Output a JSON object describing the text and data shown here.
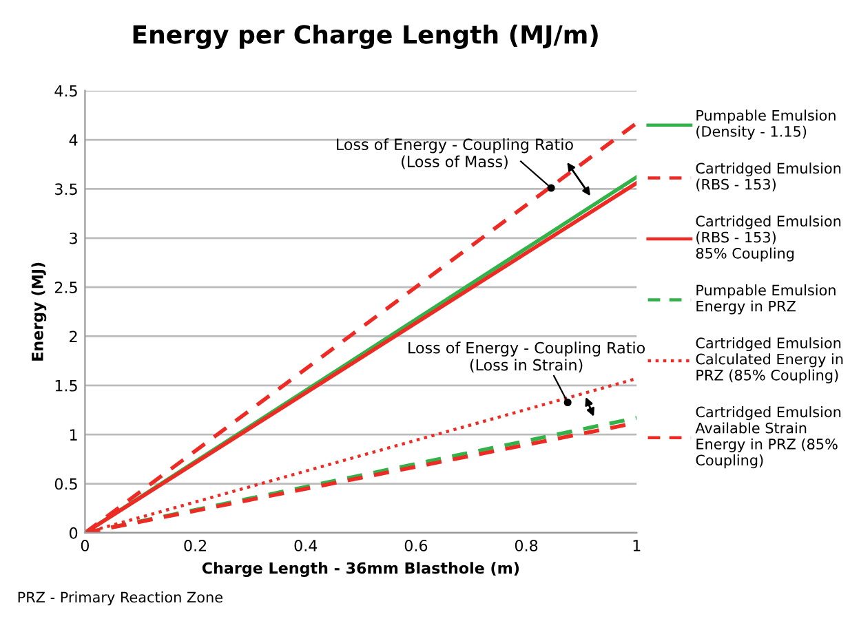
{
  "chart_data": {
    "type": "line",
    "title": "Energy per Charge Length (MJ/m)",
    "xlabel": "Charge Length - 36mm Blasthole (m)",
    "ylabel": "Energy (MJ)",
    "xlim": [
      0,
      1
    ],
    "xticks": [
      0,
      0.2,
      0.4,
      0.6,
      0.8,
      1
    ],
    "ylim": [
      0,
      4.5
    ],
    "yticks": [
      0,
      0.5,
      1,
      1.5,
      2,
      2.5,
      3,
      3.5,
      4,
      4.5
    ],
    "grid": "y",
    "legend": "right",
    "marker": "none",
    "x": [
      0,
      1
    ],
    "series": [
      {
        "name": "Pumpable Emulsion\n(Density - 1.15)",
        "color": "#33b24a",
        "line_style": "solid",
        "values": [
          0,
          3.62
        ]
      },
      {
        "name": "Cartridged Emulsion\n(RBS - 153)",
        "color": "#ee2a24",
        "line_style": "dashed",
        "values": [
          0,
          4.17
        ]
      },
      {
        "name": "Cartridged Emulsion\n(RBS - 153)\n85% Coupling",
        "color": "#ee2a24",
        "line_style": "solid",
        "values": [
          0,
          3.56
        ]
      },
      {
        "name": "Pumpable Emulsion\nEnergy in PRZ",
        "color": "#33b24a",
        "line_style": "dashed",
        "values": [
          0,
          1.17
        ]
      },
      {
        "name": "Cartridged Emulsion\nCalculated Energy in\nPRZ (85% Coupling)",
        "color": "#ee2a24",
        "line_style": "dotted",
        "values": [
          0,
          1.57
        ]
      },
      {
        "name": "Cartridged Emulsion\nAvailable Strain\nEnergy in PRZ (85%\nCoupling)",
        "color": "#ee2a24",
        "line_style": "dashed",
        "values": [
          0,
          1.12
        ]
      }
    ],
    "annotations": [
      "Loss of Energy - Coupling Ratio\n(Loss of Mass)",
      "Loss of Energy - Coupling Ratio\n(Loss in Strain)",
      "PRZ - Primary Reaction Zone"
    ]
  }
}
